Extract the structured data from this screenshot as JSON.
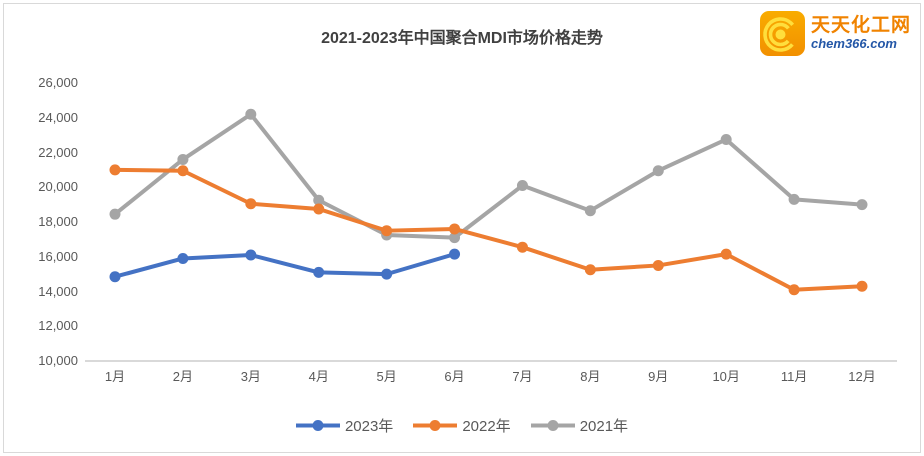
{
  "logo": {
    "line1": "天天化工网",
    "line2": "chem366.com",
    "icon_bg": "#F59B00",
    "icon_swirl": "#FFDE3C",
    "cn_color": "#F08300",
    "en_color": "#2457A7"
  },
  "chart_data": {
    "type": "line",
    "title": "2021-2023年中国聚合MDI市场价格走势",
    "xlabel": "",
    "ylabel": "",
    "x": [
      "1月",
      "2月",
      "3月",
      "4月",
      "5月",
      "6月",
      "7月",
      "8月",
      "9月",
      "10月",
      "11月",
      "12月"
    ],
    "ylim": [
      10000,
      26000
    ],
    "ytick_step": 2000,
    "grid": false,
    "legend_position": "bottom",
    "series": [
      {
        "name": "2023年",
        "color": "#4472C4",
        "values": [
          14850,
          15900,
          16100,
          15100,
          15000,
          16150
        ]
      },
      {
        "name": "2022年",
        "color": "#ED7D31",
        "values": [
          21000,
          20950,
          19050,
          18750,
          17500,
          17600,
          16550,
          15250,
          15500,
          16150,
          14100,
          14300
        ]
      },
      {
        "name": "2021年",
        "color": "#A5A5A5",
        "values": [
          18450,
          21600,
          24200,
          19250,
          17250,
          17100,
          20100,
          18650,
          20950,
          22750,
          19300,
          19000
        ]
      }
    ],
    "axis_color": "#D9D9D9",
    "tick_color": "#595959",
    "title_color": "#404040"
  }
}
